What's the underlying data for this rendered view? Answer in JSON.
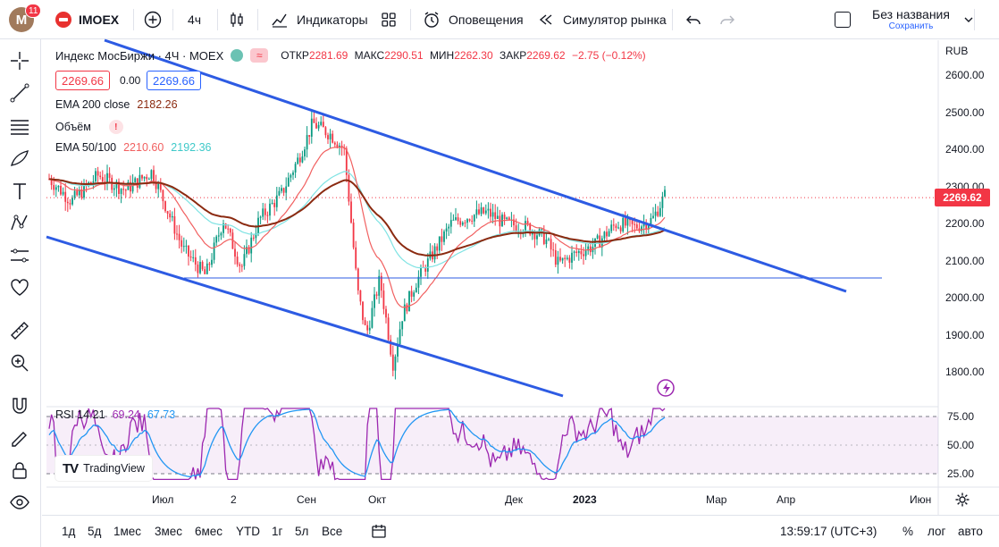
{
  "header": {
    "avatar_letter": "M",
    "notifications": "11",
    "symbol": "IMOEX",
    "interval": "4ч",
    "indicators_label": "Индикаторы",
    "alerts_label": "Оповещения",
    "replay_label": "Симулятор рынка",
    "layout_name": "Без названия",
    "layout_status": "Сохранить"
  },
  "legend": {
    "title": "Индекс МосБиржи · 4Ч · MOEX",
    "open_label": "ОТКР",
    "open": "2281.69",
    "high_label": "МАКС",
    "high": "2290.51",
    "low_label": "МИН",
    "low": "2262.30",
    "close_label": "ЗАКР",
    "close": "2269.62",
    "change": "−2.75 (−0.12%)",
    "bid": "2269.66",
    "spread": "0.00",
    "ask": "2269.66",
    "tv_brand": "TradingView",
    "tv_mark": "TV"
  },
  "indicators": {
    "ema200_label": "EMA 200 close",
    "ema200_value": "2182.26",
    "volume_label": "Объём",
    "ema50_100_label": "EMA 50/100",
    "ema50_value": "2210.60",
    "ema100_value": "2192.36",
    "rsi_label": "RSI 14 21",
    "rsi_value1": "69.24",
    "rsi_value2": "67.73"
  },
  "price_axis": {
    "currency": "RUB",
    "labels": [
      "2600.00",
      "2500.00",
      "2400.00",
      "2300.00",
      "2200.00",
      "2100.00",
      "2000.00",
      "1900.00",
      "1800.00"
    ],
    "current_price": "2269.62",
    "rsi_labels": [
      "75.00",
      "50.00",
      "25.00"
    ]
  },
  "time_axis": {
    "labels": [
      "Июл",
      "2",
      "Сен",
      "Окт",
      "Дек",
      "2023",
      "Мар",
      "Апр",
      "Июн"
    ]
  },
  "bottom_bar": {
    "ranges": [
      "1д",
      "5д",
      "1мес",
      "3мес",
      "6мес",
      "YTD",
      "1г",
      "5л",
      "Все"
    ],
    "clock": "13:59:17 (UTC+3)",
    "percent": "%",
    "log": "лог",
    "auto": "авто"
  },
  "colors": {
    "up": "#089981",
    "down": "#f23645",
    "ema200": "#8b2a10",
    "ema50": "#f16060",
    "ema100": "#7fe3e3",
    "trendline": "#2d5be3",
    "rsi": "#9c27b0",
    "rsi_ma": "#2196f3"
  }
}
